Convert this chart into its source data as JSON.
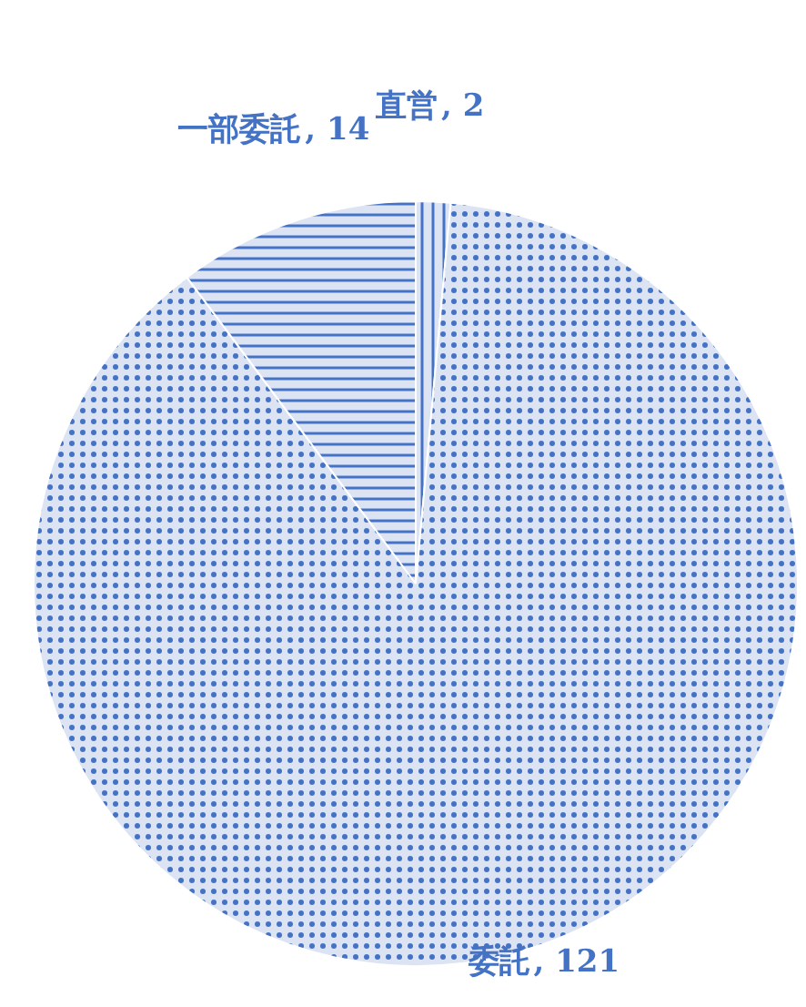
{
  "chart_data": {
    "type": "pie",
    "categories": [
      "直営",
      "委託",
      "一部委託"
    ],
    "values": [
      2,
      121,
      14
    ],
    "value_labels": [
      ", 2",
      ", 121",
      ", 14"
    ],
    "colors": [
      "#dce4f4",
      "#dce4f4",
      "#dce4f4"
    ]
  }
}
